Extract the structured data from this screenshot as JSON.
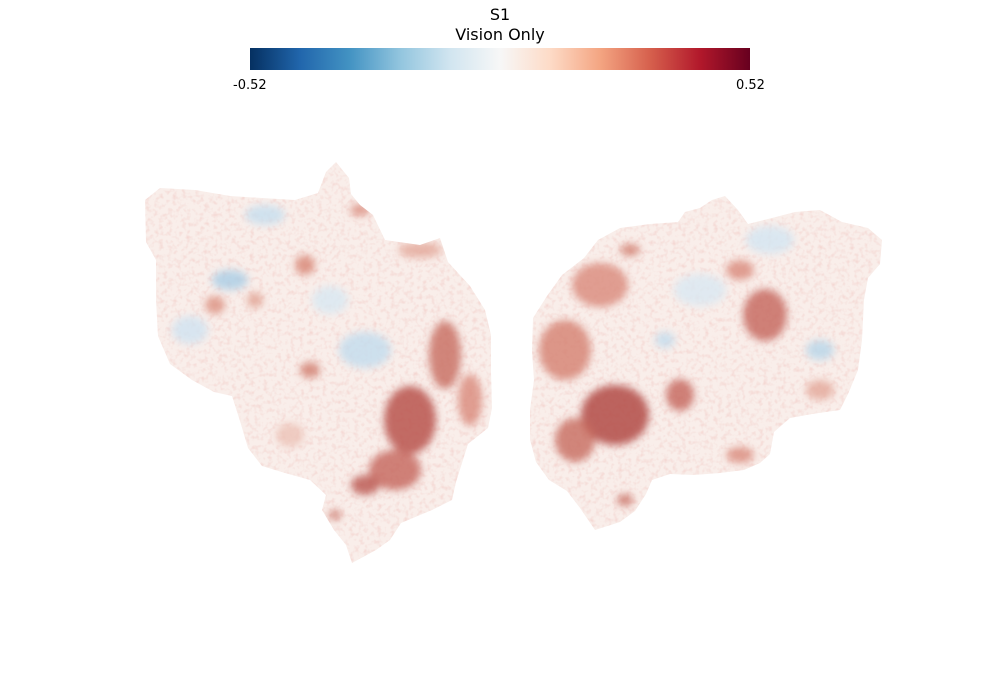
{
  "title": "S1",
  "subtitle": "Vision Only",
  "colorbar": {
    "min_label": "-0.52",
    "max_label": "0.52",
    "vmin": -0.52,
    "vmax": 0.52,
    "colors": [
      "#053061",
      "#2166ac",
      "#4393c3",
      "#92c5de",
      "#d1e5f0",
      "#f7f7f7",
      "#fddbc7",
      "#f4a582",
      "#d6604d",
      "#b2182b",
      "#67001f"
    ]
  }
}
